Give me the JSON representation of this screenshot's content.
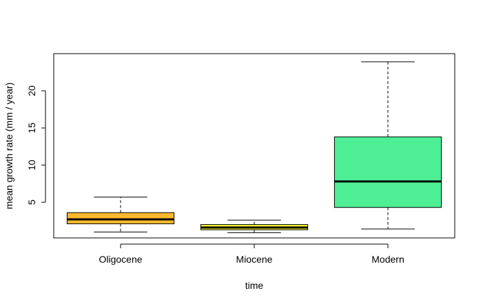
{
  "chart_data": {
    "type": "boxplot",
    "xlabel": "time",
    "ylabel": "mean growth rate (mm / year)",
    "yticks": [
      5,
      10,
      15,
      20
    ],
    "ylim": [
      0.2,
      25
    ],
    "categories": [
      "Oligocene",
      "Miocene",
      "Modern"
    ],
    "boxes": [
      {
        "category": "Oligocene",
        "min": 1.0,
        "q1": 2.1,
        "median": 2.7,
        "q3": 3.6,
        "max": 5.7,
        "color": "#FDB92E"
      },
      {
        "category": "Miocene",
        "min": 0.9,
        "q1": 1.3,
        "median": 1.6,
        "q3": 2.0,
        "max": 2.6,
        "color": "#FAFA2E"
      },
      {
        "category": "Modern",
        "min": 1.4,
        "q1": 4.3,
        "median": 7.8,
        "q3": 13.8,
        "max": 23.9,
        "color": "#4EEE94"
      }
    ]
  }
}
